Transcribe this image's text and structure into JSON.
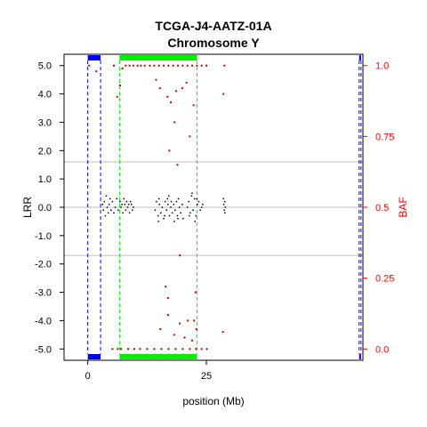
{
  "chart_data": {
    "type": "scatter",
    "title": "TCGA-J4-AATZ-01A",
    "subtitle": "Chromosome Y",
    "xlabel": "position (Mb)",
    "ylabel": "LRR",
    "y2label": "BAF",
    "xlim": [
      -5,
      58
    ],
    "ylim": [
      -5.4,
      5.4
    ],
    "y2lim": [
      -0.04,
      1.04
    ],
    "x_ticks": [
      0,
      25
    ],
    "y_ticks": [
      -5.0,
      -4.0,
      -3.0,
      -2.0,
      -1.0,
      0.0,
      1.0,
      2.0,
      3.0,
      4.0,
      5.0
    ],
    "y_tick_labels": [
      "-5.0",
      "-4.0",
      "-3.0",
      "-2.0",
      "-1.0",
      "0.0",
      "1.0",
      "2.0",
      "3.0",
      "4.0",
      "5.0"
    ],
    "y2_ticks": [
      0.0,
      0.25,
      0.5,
      0.75,
      1.0
    ],
    "y2_tick_labels": [
      "0.0",
      "0.25",
      "0.5",
      "0.75",
      "1.0"
    ],
    "hlines": [
      1.6,
      0,
      -1.7
    ],
    "regions": [
      {
        "name": "blue-segment-1",
        "start": 0.0,
        "end": 2.7,
        "color": "#0000ff"
      },
      {
        "name": "green-segment",
        "start": 6.7,
        "end": 23.0,
        "color": "#00ee00"
      },
      {
        "name": "blue-segment-2",
        "start": 57.2,
        "end": 57.6,
        "color": "#0000ff"
      }
    ],
    "colors": {
      "lrr": "#000000",
      "baf": "#cc0000",
      "grid": "#bebebe",
      "axis_right": "#ff0000"
    },
    "lrr_points": [
      [
        3.1,
        0.1
      ],
      [
        3.3,
        -0.1
      ],
      [
        3.5,
        0.2
      ],
      [
        3.7,
        -0.3
      ],
      [
        3.9,
        0.4
      ],
      [
        4.1,
        0.0
      ],
      [
        4.3,
        -0.2
      ],
      [
        4.5,
        0.1
      ],
      [
        4.7,
        0.3
      ],
      [
        4.9,
        -0.1
      ],
      [
        5.2,
        0.2
      ],
      [
        5.5,
        -0.2
      ],
      [
        5.8,
        0.0
      ],
      [
        6.1,
        0.3
      ],
      [
        6.4,
        -0.1
      ],
      [
        6.8,
        0.2
      ],
      [
        7.0,
        0.0
      ],
      [
        7.2,
        0.1
      ],
      [
        7.4,
        -0.2
      ],
      [
        7.6,
        0.3
      ],
      [
        7.8,
        0.1
      ],
      [
        8.0,
        -0.1
      ],
      [
        8.2,
        0.2
      ],
      [
        8.4,
        0.0
      ],
      [
        8.6,
        0.1
      ],
      [
        8.8,
        -0.2
      ],
      [
        9.0,
        0.2
      ],
      [
        9.2,
        0.1
      ],
      [
        9.4,
        -0.1
      ],
      [
        9.6,
        0.0
      ],
      [
        14.2,
        -0.1
      ],
      [
        14.5,
        0.2
      ],
      [
        14.8,
        -0.3
      ],
      [
        15.1,
        0.1
      ],
      [
        15.4,
        -0.2
      ],
      [
        15.7,
        0.0
      ],
      [
        16.0,
        -0.4
      ],
      [
        16.3,
        0.2
      ],
      [
        16.6,
        -0.1
      ],
      [
        16.9,
        0.1
      ],
      [
        17.2,
        -0.3
      ],
      [
        17.5,
        0.0
      ],
      [
        17.8,
        -0.2
      ],
      [
        18.1,
        0.1
      ],
      [
        18.4,
        -0.1
      ],
      [
        18.7,
        0.2
      ],
      [
        19.0,
        -0.4
      ],
      [
        19.3,
        0.0
      ],
      [
        19.6,
        -0.2
      ],
      [
        19.9,
        0.1
      ],
      [
        15.0,
        0.3
      ],
      [
        16.2,
        -0.3
      ],
      [
        17.1,
        0.4
      ],
      [
        18.2,
        -0.5
      ],
      [
        19.1,
        0.3
      ],
      [
        20.1,
        -0.4
      ],
      [
        14.9,
        -0.5
      ],
      [
        16.8,
        0.3
      ],
      [
        18.9,
        -0.3
      ],
      [
        17.6,
        0.2
      ],
      [
        21.0,
        0.0
      ],
      [
        21.3,
        0.2
      ],
      [
        21.6,
        -0.2
      ],
      [
        21.9,
        0.4
      ],
      [
        22.2,
        -0.1
      ],
      [
        22.5,
        0.3
      ],
      [
        22.8,
        -0.3
      ],
      [
        23.1,
        0.1
      ],
      [
        23.4,
        0.2
      ],
      [
        23.7,
        -0.1
      ],
      [
        22.0,
        0.5
      ],
      [
        22.6,
        -0.5
      ],
      [
        23.0,
        0.3
      ],
      [
        21.4,
        -0.3
      ],
      [
        24.0,
        0.0
      ],
      [
        24.2,
        0.1
      ],
      [
        28.7,
        0.1
      ],
      [
        28.8,
        -0.1
      ],
      [
        28.9,
        0.2
      ],
      [
        29.0,
        0.0
      ],
      [
        28.6,
        0.3
      ],
      [
        28.9,
        -0.2
      ]
    ],
    "baf_points": [
      [
        0.3,
        1.0
      ],
      [
        1.8,
        0.98
      ],
      [
        5.5,
        1.0
      ],
      [
        6.2,
        0.89
      ],
      [
        6.8,
        0.93
      ],
      [
        7.3,
        0.99
      ],
      [
        8.0,
        1.0
      ],
      [
        8.8,
        1.0
      ],
      [
        9.6,
        1.0
      ],
      [
        10.5,
        1.0
      ],
      [
        11.2,
        1.0
      ],
      [
        12.0,
        1.0
      ],
      [
        13.1,
        1.0
      ],
      [
        14.0,
        1.0
      ],
      [
        15.0,
        1.0
      ],
      [
        16.0,
        1.0
      ],
      [
        17.0,
        1.0
      ],
      [
        18.0,
        1.0
      ],
      [
        19.0,
        1.0
      ],
      [
        20.0,
        1.0
      ],
      [
        21.0,
        1.0
      ],
      [
        22.0,
        1.0
      ],
      [
        23.0,
        1.0
      ],
      [
        24.0,
        1.0
      ],
      [
        25.0,
        1.0
      ],
      [
        28.8,
        1.0
      ],
      [
        15.2,
        0.92
      ],
      [
        16.8,
        0.89
      ],
      [
        18.6,
        0.91
      ],
      [
        17.5,
        0.87
      ],
      [
        19.9,
        0.92
      ],
      [
        22.3,
        0.86
      ],
      [
        20.8,
        0.94
      ],
      [
        14.4,
        0.95
      ],
      [
        28.6,
        0.9
      ],
      [
        5.2,
        0.0
      ],
      [
        6.3,
        0.0
      ],
      [
        7.0,
        0.0
      ],
      [
        8.5,
        0.0
      ],
      [
        9.8,
        0.0
      ],
      [
        11.0,
        0.0
      ],
      [
        12.5,
        0.0
      ],
      [
        14.0,
        0.0
      ],
      [
        15.5,
        0.0
      ],
      [
        17.0,
        0.0
      ],
      [
        18.5,
        0.0
      ],
      [
        20.0,
        0.0
      ],
      [
        21.5,
        0.0
      ],
      [
        22.8,
        0.0
      ],
      [
        24.0,
        0.0
      ],
      [
        25.1,
        0.0
      ],
      [
        15.3,
        0.07
      ],
      [
        16.9,
        0.12
      ],
      [
        18.2,
        0.05
      ],
      [
        19.4,
        0.09
      ],
      [
        22.0,
        0.03
      ],
      [
        22.9,
        0.07
      ],
      [
        21.1,
        0.1
      ],
      [
        20.4,
        0.04
      ],
      [
        28.5,
        0.06
      ],
      [
        16.4,
        0.22
      ],
      [
        16.9,
        0.18
      ],
      [
        19.4,
        0.33
      ],
      [
        17.2,
        0.7
      ],
      [
        18.3,
        0.8
      ],
      [
        18.9,
        0.65
      ],
      [
        21.5,
        0.75
      ],
      [
        22.4,
        0.1
      ],
      [
        22.7,
        0.2
      ]
    ]
  }
}
